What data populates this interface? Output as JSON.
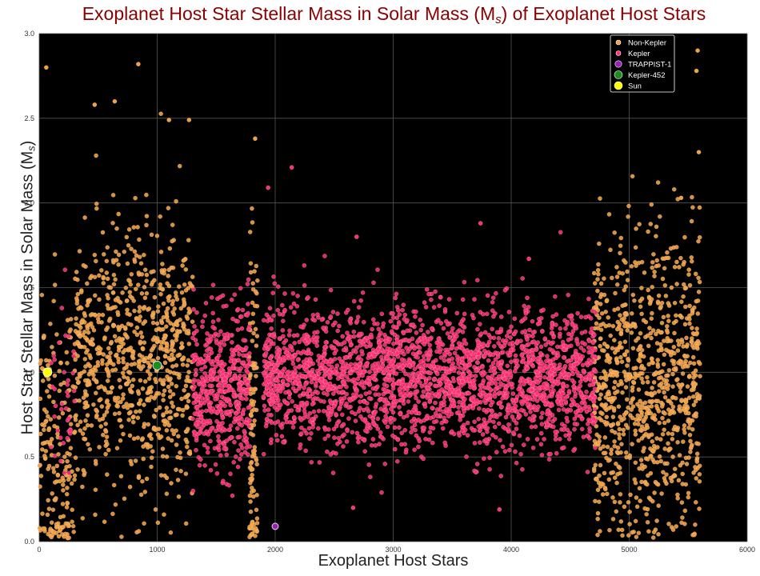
{
  "chart_data": {
    "type": "scatter",
    "title": "Exoplanet Host Star Stellar Mass in Solar Mass (M",
    "title_sub": "s",
    "title_end": ") of Exoplanet Host Stars",
    "xlabel": "Exoplanet Host Stars",
    "ylabel": "Host Star Stellar Mass in Solar Mass (M",
    "ylabel_sub": "s",
    "ylabel_end": ")",
    "xlim": [
      0,
      6000
    ],
    "ylim": [
      0.0,
      3.0
    ],
    "xticks": [
      "0",
      "1000",
      "2000",
      "3000",
      "4000",
      "5000",
      "6000"
    ],
    "yticks": [
      "0.0",
      "0.5",
      "1.0",
      "1.5",
      "2.0",
      "2.5",
      "3.0"
    ],
    "background": "#000000",
    "grid": true,
    "legend_position": "top-right",
    "series": [
      {
        "name": "Non-Kepler",
        "color": "#f5a040",
        "marker_size": "small",
        "clusters": [
          {
            "x_range": [
              0,
              300
            ],
            "y_mean": 0.55,
            "y_sd": 0.45,
            "count": 180
          },
          {
            "x_range": [
              300,
              1300
            ],
            "y_mean": 1.08,
            "y_sd": 0.38,
            "count": 820
          },
          {
            "x_range": [
              1780,
              1850
            ],
            "y_mean": 0.55,
            "y_sd": 0.6,
            "count": 110
          },
          {
            "x_range": [
              4700,
              5600
            ],
            "y_mean": 0.9,
            "y_sd": 0.45,
            "count": 900
          }
        ],
        "sample_points": [
          [
            60,
            2.8
          ],
          [
            840,
            2.82
          ],
          [
            470,
            2.58
          ],
          [
            640,
            2.6
          ],
          [
            1100,
            2.49
          ],
          [
            1270,
            2.49
          ],
          [
            5580,
            2.9
          ],
          [
            5570,
            2.78
          ],
          [
            5590,
            2.3
          ],
          [
            5440,
            2.03
          ],
          [
            1830,
            2.38
          ]
        ]
      },
      {
        "name": "Kepler",
        "color": "#ff2f72",
        "marker_size": "small",
        "clusters": [
          {
            "x_range": [
              1300,
              1790
            ],
            "y_mean": 0.92,
            "y_sd": 0.24,
            "count": 520
          },
          {
            "x_range": [
              1900,
              4720
            ],
            "y_mean": 0.97,
            "y_sd": 0.2,
            "count": 2600
          },
          {
            "x_range": [
              100,
              300
            ],
            "y_mean": 0.8,
            "y_sd": 0.3,
            "count": 40
          }
        ],
        "sample_points": [
          [
            2140,
            2.21
          ],
          [
            1940,
            2.09
          ],
          [
            3740,
            1.88
          ],
          [
            2690,
            1.8
          ],
          [
            4150,
            1.67
          ],
          [
            3900,
            0.19
          ],
          [
            2660,
            0.2
          ]
        ]
      },
      {
        "name": "TRAPPIST-1",
        "color": "#9b1fb5",
        "marker_size": "medium",
        "points": [
          [
            2000,
            0.09
          ]
        ]
      },
      {
        "name": "Kepler-452",
        "color": "#1f8c1f",
        "marker_size": "large",
        "points": [
          [
            1000,
            1.04
          ]
        ]
      },
      {
        "name": "Sun",
        "color": "#ffff00",
        "marker_size": "large",
        "points": [
          [
            70,
            1.0
          ]
        ]
      }
    ]
  }
}
